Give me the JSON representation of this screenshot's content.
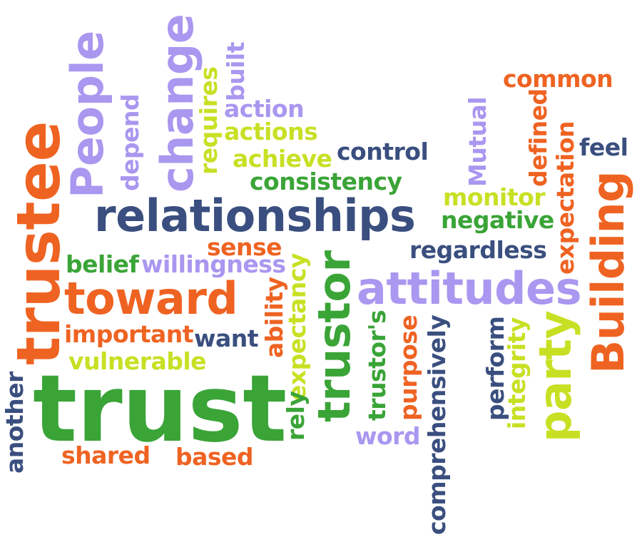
{
  "words": {
    "trustee": "trustee",
    "people": "People",
    "change": "change",
    "built": "built",
    "depend": "depend",
    "requires": "requires",
    "action": "action",
    "actions": "actions",
    "achieve": "achieve",
    "control": "control",
    "consistency": "consistency",
    "common": "common",
    "mutual": "Mutual",
    "defined": "defined",
    "expectation": "expectation",
    "feel": "feel",
    "building": "Building",
    "monitor": "monitor",
    "negative": "negative",
    "relationships": "relationships",
    "regardless": "regardless",
    "sense": "sense",
    "belief": "belief",
    "willingness": "willingness",
    "toward": "toward",
    "important": "important",
    "want": "want",
    "vulnerable": "vulnerable",
    "ability": "ability",
    "expectancy": "expectancy",
    "trustor": "trustor",
    "attitudes": "attitudes",
    "trustors": "trustor's",
    "purpose": "purpose",
    "comprehensively_a": "comprehensively",
    "comprehensively_b": "comprehensively",
    "perform": "perform",
    "integrity": "integrity",
    "party": "party",
    "another": "another",
    "trust": "trust",
    "rely": "rely",
    "word": "word",
    "shared": "shared",
    "based": "based"
  },
  "colors": {
    "orange": "#ef6322",
    "purple": "#a997f0",
    "navy": "#3a4f7f",
    "green": "#3aa437",
    "lime": "#c8e024"
  }
}
